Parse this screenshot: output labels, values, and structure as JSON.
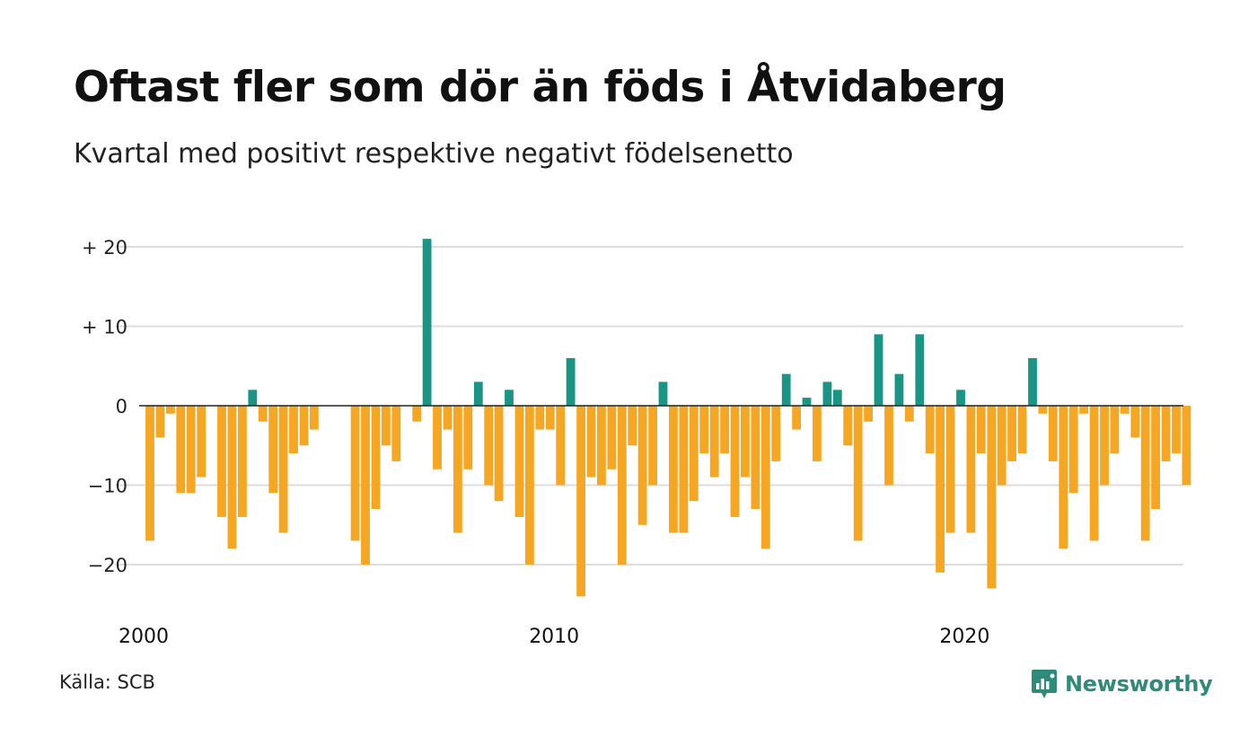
{
  "title": "Oftast fler som dör än föds i Åtvidaberg",
  "subtitle": "Kvartal med positivt respektive negativt födelsenetto",
  "source": "Källa: SCB",
  "brand": "Newsworthy",
  "colors": {
    "positive": "#1a9585",
    "negative": "#f5a623",
    "grid": "#dddddd",
    "brand": "#2e8b7a"
  },
  "chart_data": {
    "type": "bar",
    "title": "Oftast fler som dör än föds i Åtvidaberg",
    "subtitle": "Kvartal med positivt respektive negativt födelsenetto",
    "x_start": 2000.0,
    "x_step": 0.25,
    "values": [
      -17,
      -4,
      -1,
      -11,
      -11,
      -9,
      0,
      -14,
      -18,
      -14,
      2,
      -2,
      -11,
      -16,
      -6,
      -5,
      -3,
      0,
      0,
      0,
      -17,
      -20,
      -13,
      -5,
      -7,
      0,
      -2,
      21,
      -8,
      -3,
      -16,
      -8,
      3,
      -10,
      -12,
      2,
      -14,
      -20,
      -3,
      -3,
      -10,
      6,
      -24,
      -9,
      -10,
      -8,
      -20,
      -5,
      -15,
      -10,
      3,
      -16,
      -16,
      -12,
      -6,
      -9,
      -6,
      -14,
      -9,
      -13,
      -18,
      -7,
      4,
      -3,
      1,
      -7,
      3,
      2,
      -5,
      -17,
      -2,
      9,
      -10,
      4,
      -2,
      9,
      -6,
      -21,
      -16,
      2,
      -16,
      -6,
      -23,
      -10,
      -7,
      -6,
      6,
      -1,
      -7,
      -18,
      -11,
      -1,
      -17,
      -10,
      -6,
      -1,
      -4,
      -17,
      -13,
      -7,
      -6,
      -10
    ],
    "ylim": [
      -25,
      22
    ],
    "y_ticks": [
      20,
      10,
      0,
      -10,
      -20
    ],
    "y_tick_labels": [
      "+ 20",
      "+ 10",
      "0",
      "−10",
      "−20"
    ],
    "x_ticks": [
      2000,
      2010,
      2020
    ],
    "x_tick_labels": [
      "2000",
      "2010",
      "2020"
    ],
    "grid": true,
    "legend": "none"
  }
}
